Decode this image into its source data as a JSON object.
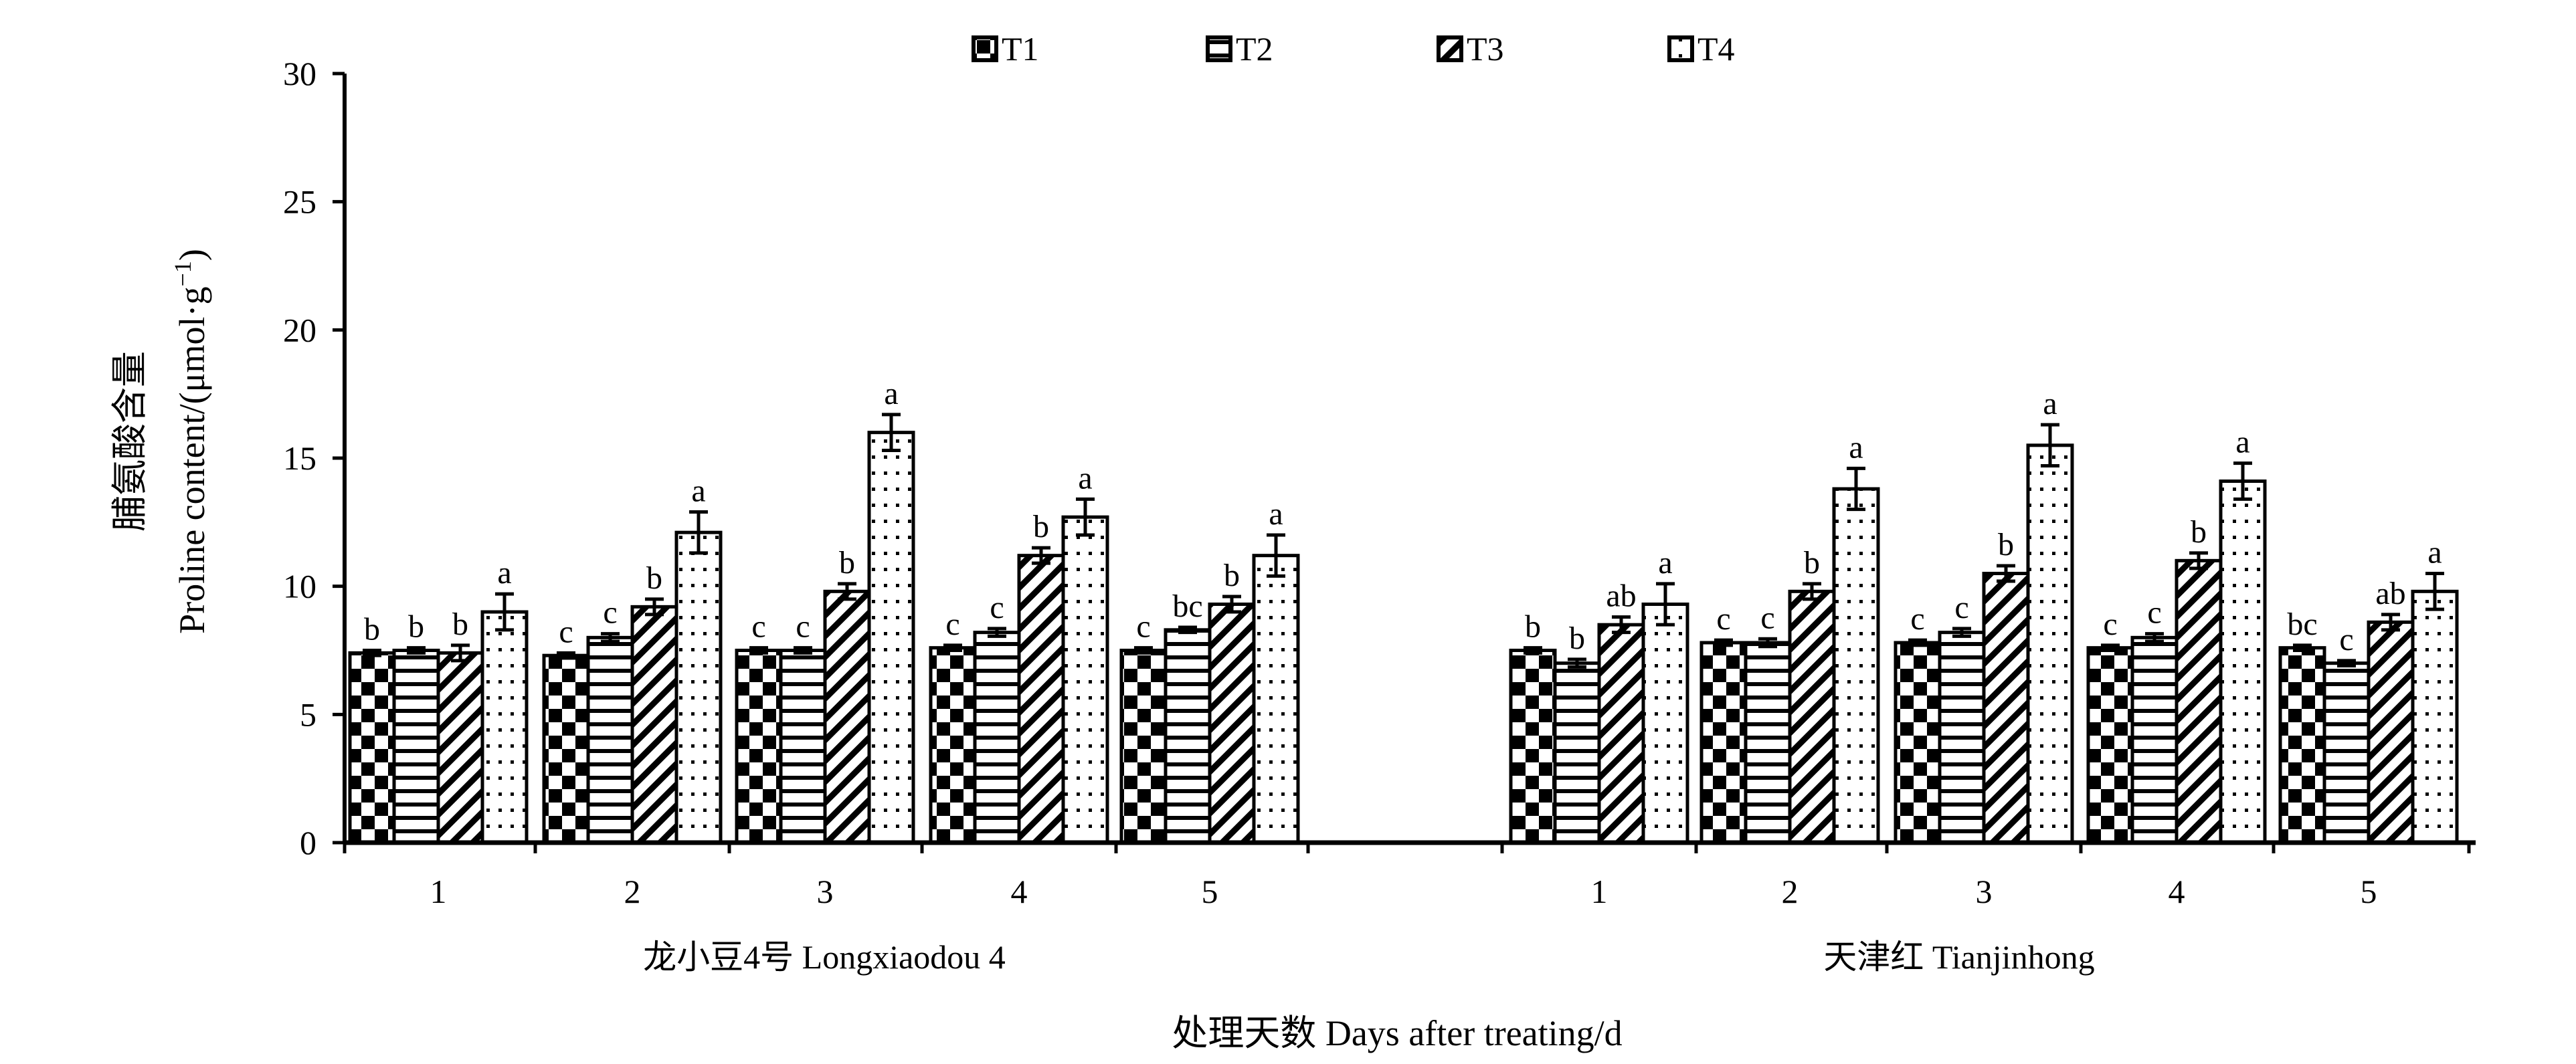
{
  "chart_data": {
    "type": "bar",
    "xlabel": "处理天数 Days after treating/d",
    "ylabel_cn": "脯氨酸含量",
    "ylabel_en": "Proline content/(μmol·g",
    "ylabel_sup": "−1",
    "ylabel_close": ")",
    "ylim": [
      0,
      30
    ],
    "yticks": [
      0,
      5,
      10,
      15,
      20,
      25,
      30
    ],
    "legend_position": "top-center",
    "series": [
      {
        "name": "T1",
        "pattern": "checker"
      },
      {
        "name": "T2",
        "pattern": "hlines"
      },
      {
        "name": "T3",
        "pattern": "diag"
      },
      {
        "name": "T4",
        "pattern": "dots"
      }
    ],
    "groups": [
      {
        "label": "龙小豆4号 Longxiaodou 4",
        "days": [
          {
            "day": "1",
            "values": [
              7.4,
              7.5,
              7.4,
              9.0
            ],
            "errors": [
              0.1,
              0.1,
              0.3,
              0.7
            ],
            "letters": [
              "b",
              "b",
              "b",
              "a"
            ]
          },
          {
            "day": "2",
            "values": [
              7.3,
              8.0,
              9.2,
              12.1
            ],
            "errors": [
              0.1,
              0.15,
              0.3,
              0.8
            ],
            "letters": [
              "c",
              "c",
              "b",
              "a"
            ]
          },
          {
            "day": "3",
            "values": [
              7.5,
              7.5,
              9.8,
              16.0
            ],
            "errors": [
              0.1,
              0.1,
              0.3,
              0.7
            ],
            "letters": [
              "c",
              "c",
              "b",
              "a"
            ]
          },
          {
            "day": "4",
            "values": [
              7.6,
              8.2,
              11.2,
              12.7
            ],
            "errors": [
              0.1,
              0.15,
              0.3,
              0.7
            ],
            "letters": [
              "c",
              "c",
              "b",
              "a"
            ]
          },
          {
            "day": "5",
            "values": [
              7.5,
              8.3,
              9.3,
              11.2
            ],
            "errors": [
              0.1,
              0.1,
              0.3,
              0.8
            ],
            "letters": [
              "c",
              "bc",
              "b",
              "a"
            ]
          }
        ]
      },
      {
        "label": "天津红 Tianjinhong",
        "days": [
          {
            "day": "1",
            "values": [
              7.5,
              7.0,
              8.5,
              9.3
            ],
            "errors": [
              0.1,
              0.15,
              0.3,
              0.8
            ],
            "letters": [
              "b",
              "b",
              "ab",
              "a"
            ]
          },
          {
            "day": "2",
            "values": [
              7.8,
              7.8,
              9.8,
              13.8
            ],
            "errors": [
              0.1,
              0.15,
              0.3,
              0.8
            ],
            "letters": [
              "c",
              "c",
              "b",
              "a"
            ]
          },
          {
            "day": "3",
            "values": [
              7.8,
              8.2,
              10.5,
              15.5
            ],
            "errors": [
              0.1,
              0.15,
              0.3,
              0.8
            ],
            "letters": [
              "c",
              "c",
              "b",
              "a"
            ]
          },
          {
            "day": "4",
            "values": [
              7.6,
              8.0,
              11.0,
              14.1
            ],
            "errors": [
              0.1,
              0.15,
              0.3,
              0.7
            ],
            "letters": [
              "c",
              "c",
              "b",
              "a"
            ]
          },
          {
            "day": "5",
            "values": [
              7.6,
              7.0,
              8.6,
              9.8
            ],
            "errors": [
              0.1,
              0.1,
              0.3,
              0.7
            ],
            "letters": [
              "bc",
              "c",
              "ab",
              "a"
            ]
          }
        ]
      }
    ]
  }
}
